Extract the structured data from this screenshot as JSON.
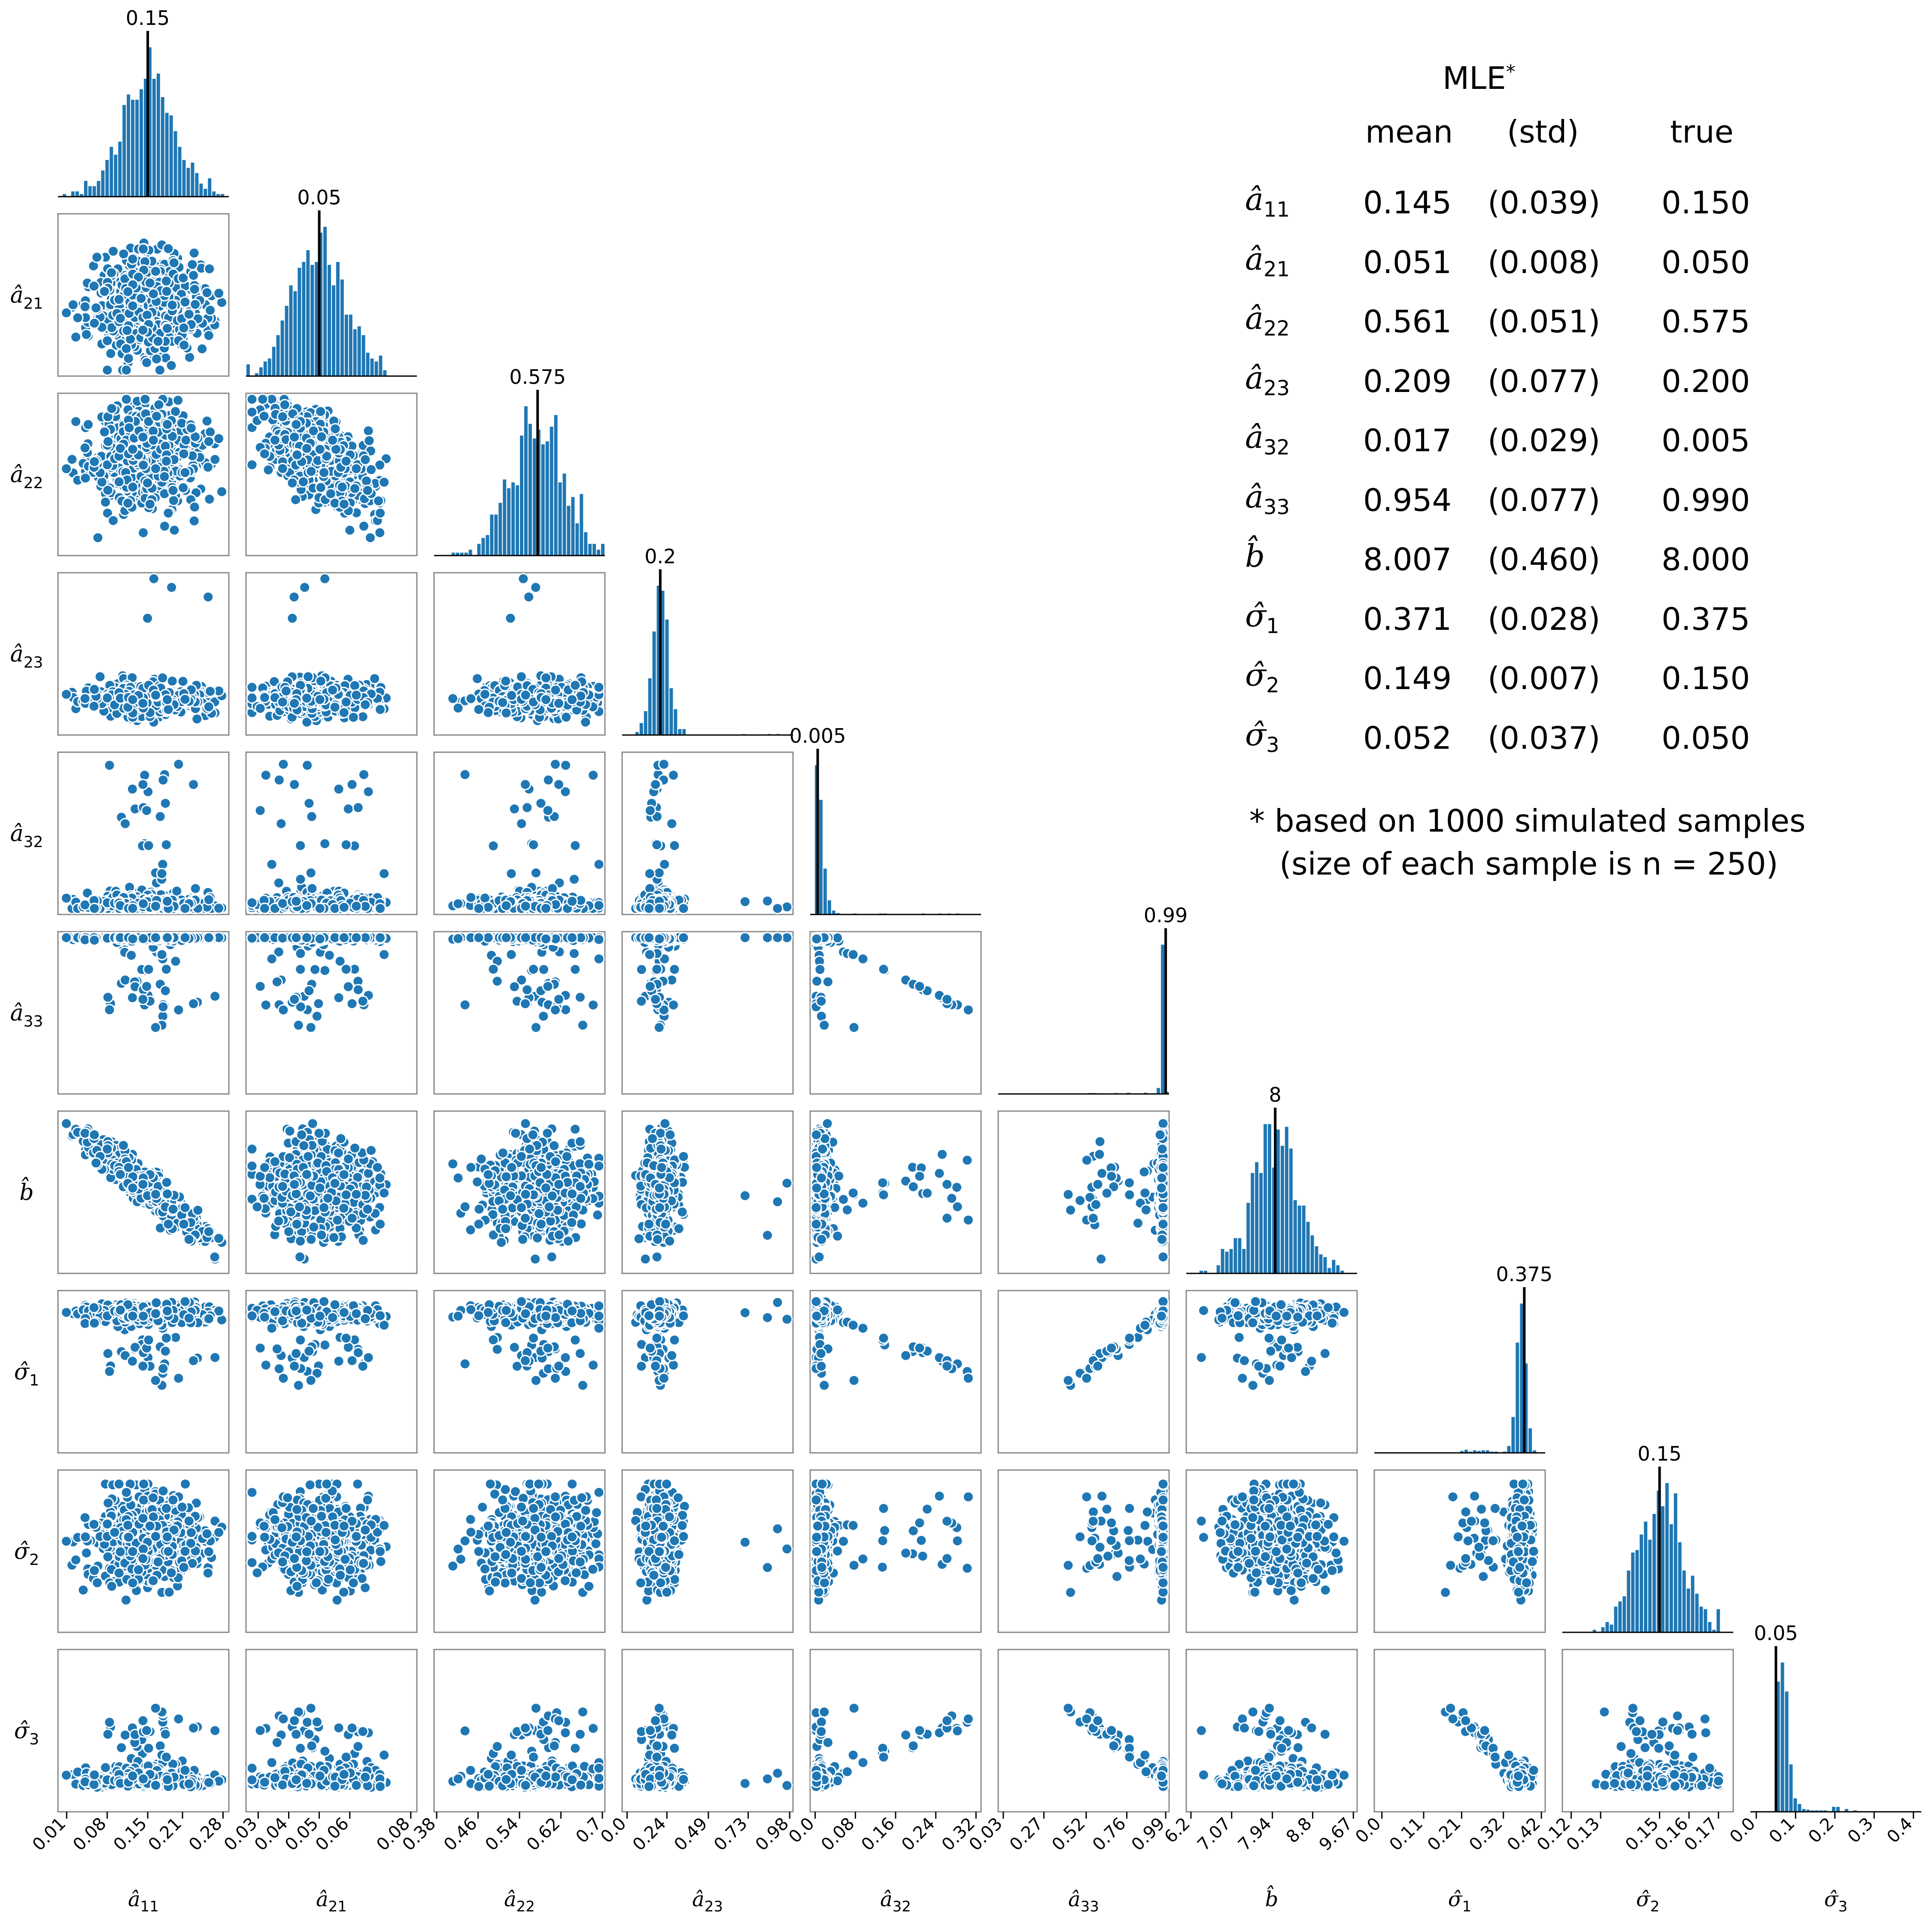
{
  "chart_data": {
    "type": "scatter",
    "subtype": "corner-pairplot",
    "n_simulated_samples": 1000,
    "variables": [
      {
        "id": "a11",
        "label_symbol": "â",
        "label_sub": "11",
        "true": 0.15,
        "true_label": "0.15",
        "mean": 0.145,
        "std": 0.039,
        "range": [
          -0.005,
          0.29
        ],
        "ticks": [
          0.01,
          0.08,
          0.15,
          0.21,
          0.28
        ],
        "tick_labels": [
          "0.01",
          "0.08",
          "0.15",
          "0.21",
          "0.28"
        ]
      },
      {
        "id": "a21",
        "label_symbol": "â",
        "label_sub": "21",
        "true": 0.05,
        "true_label": "0.05",
        "mean": 0.051,
        "std": 0.008,
        "range": [
          0.026,
          0.082
        ],
        "ticks": [
          0.03,
          0.04,
          0.05,
          0.06,
          0.08
        ],
        "tick_labels": [
          "0.03",
          "0.04",
          "0.05",
          "0.06",
          "0.08"
        ]
      },
      {
        "id": "a22",
        "label_symbol": "â",
        "label_sub": "22",
        "true": 0.575,
        "true_label": "0.575",
        "mean": 0.561,
        "std": 0.051,
        "range": [
          0.375,
          0.705
        ],
        "ticks": [
          0.38,
          0.46,
          0.54,
          0.62,
          0.7
        ],
        "tick_labels": [
          "0.38",
          "0.46",
          "0.54",
          "0.62",
          "0.7"
        ]
      },
      {
        "id": "a23",
        "label_symbol": "â",
        "label_sub": "23",
        "true": 0.2,
        "true_label": "0.2",
        "mean": 0.209,
        "std": 0.077,
        "range": [
          -0.03,
          1.0
        ],
        "ticks": [
          0.0,
          0.24,
          0.49,
          0.73,
          0.98
        ],
        "tick_labels": [
          "0.0",
          "0.24",
          "0.49",
          "0.73",
          "0.98"
        ]
      },
      {
        "id": "a32",
        "label_symbol": "â",
        "label_sub": "32",
        "true": 0.005,
        "true_label": "0.005",
        "mean": 0.017,
        "std": 0.029,
        "range": [
          -0.01,
          0.33
        ],
        "ticks": [
          0.0,
          0.08,
          0.16,
          0.24,
          0.32
        ],
        "tick_labels": [
          "0.0",
          "0.08",
          "0.16",
          "0.24",
          "0.32"
        ]
      },
      {
        "id": "a33",
        "label_symbol": "â",
        "label_sub": "33",
        "true": 0.99,
        "true_label": "0.99",
        "mean": 0.954,
        "std": 0.077,
        "range": [
          0.0,
          1.01
        ],
        "ticks": [
          0.03,
          0.27,
          0.52,
          0.76,
          0.99
        ],
        "tick_labels": [
          "0.03",
          "0.27",
          "0.52",
          "0.76",
          "0.99"
        ]
      },
      {
        "id": "b",
        "label_symbol": "b̂",
        "label_sub": "",
        "true": 8.0,
        "true_label": "8",
        "mean": 8.007,
        "std": 0.46,
        "range": [
          6.1,
          9.75
        ],
        "ticks": [
          6.2,
          7.07,
          7.94,
          8.8,
          9.67
        ],
        "tick_labels": [
          "6.2",
          "7.07",
          "7.94",
          "8.8",
          "9.67"
        ]
      },
      {
        "id": "s1",
        "label_symbol": "σ̂",
        "label_sub": "1",
        "true": 0.375,
        "true_label": "0.375",
        "mean": 0.371,
        "std": 0.028,
        "range": [
          -0.02,
          0.43
        ],
        "ticks": [
          0.0,
          0.11,
          0.21,
          0.32,
          0.42
        ],
        "tick_labels": [
          "0.0",
          "0.11",
          "0.21",
          "0.32",
          "0.42"
        ]
      },
      {
        "id": "s2",
        "label_symbol": "σ̂",
        "label_sub": "2",
        "true": 0.15,
        "true_label": "0.15",
        "mean": 0.149,
        "std": 0.007,
        "range": [
          0.117,
          0.175
        ],
        "ticks": [
          0.12,
          0.13,
          0.15,
          0.16,
          0.17
        ],
        "tick_labels": [
          "0.12",
          "0.13",
          "0.15",
          "0.16",
          "0.17"
        ]
      },
      {
        "id": "s3",
        "label_symbol": "σ̂",
        "label_sub": "3",
        "true": 0.05,
        "true_label": "0.05",
        "mean": 0.052,
        "std": 0.037,
        "range": [
          -0.015,
          0.42
        ],
        "ticks": [
          0.0,
          0.1,
          0.2,
          0.3,
          0.4
        ],
        "tick_labels": [
          "0.0",
          "0.1",
          "0.2",
          "0.3",
          "0.4"
        ]
      }
    ],
    "colors": {
      "points": "#1f77b4",
      "bars": "#1f77b4",
      "true_line": "#000000",
      "frame": "#888888"
    },
    "grid": false,
    "scatter_marker": "circle with white edge",
    "histogram_true_value_line": true
  },
  "mle_table": {
    "title": "MLE",
    "title_sup": "*",
    "columns": [
      "mean",
      "(std)",
      "true"
    ],
    "rows": [
      {
        "sym": "â",
        "sub": "11",
        "mean": "0.145",
        "std": "(0.039)",
        "true": "0.150"
      },
      {
        "sym": "â",
        "sub": "21",
        "mean": "0.051",
        "std": "(0.008)",
        "true": "0.050"
      },
      {
        "sym": "â",
        "sub": "22",
        "mean": "0.561",
        "std": "(0.051)",
        "true": "0.575"
      },
      {
        "sym": "â",
        "sub": "23",
        "mean": "0.209",
        "std": "(0.077)",
        "true": "0.200"
      },
      {
        "sym": "â",
        "sub": "32",
        "mean": "0.017",
        "std": "(0.029)",
        "true": "0.005"
      },
      {
        "sym": "â",
        "sub": "33",
        "mean": "0.954",
        "std": "(0.077)",
        "true": "0.990"
      },
      {
        "sym": "b̂",
        "sub": "",
        "mean": "8.007",
        "std": "(0.460)",
        "true": "8.000"
      },
      {
        "sym": "σ̂",
        "sub": "1",
        "mean": "0.371",
        "std": "(0.028)",
        "true": "0.375"
      },
      {
        "sym": "σ̂",
        "sub": "2",
        "mean": "0.149",
        "std": "(0.007)",
        "true": "0.150"
      },
      {
        "sym": "σ̂",
        "sub": "3",
        "mean": "0.052",
        "std": "(0.037)",
        "true": "0.050"
      }
    ],
    "note_line1": "* based on 1000 simulated samples",
    "note_line2": "(size of each sample is n = 250)"
  }
}
